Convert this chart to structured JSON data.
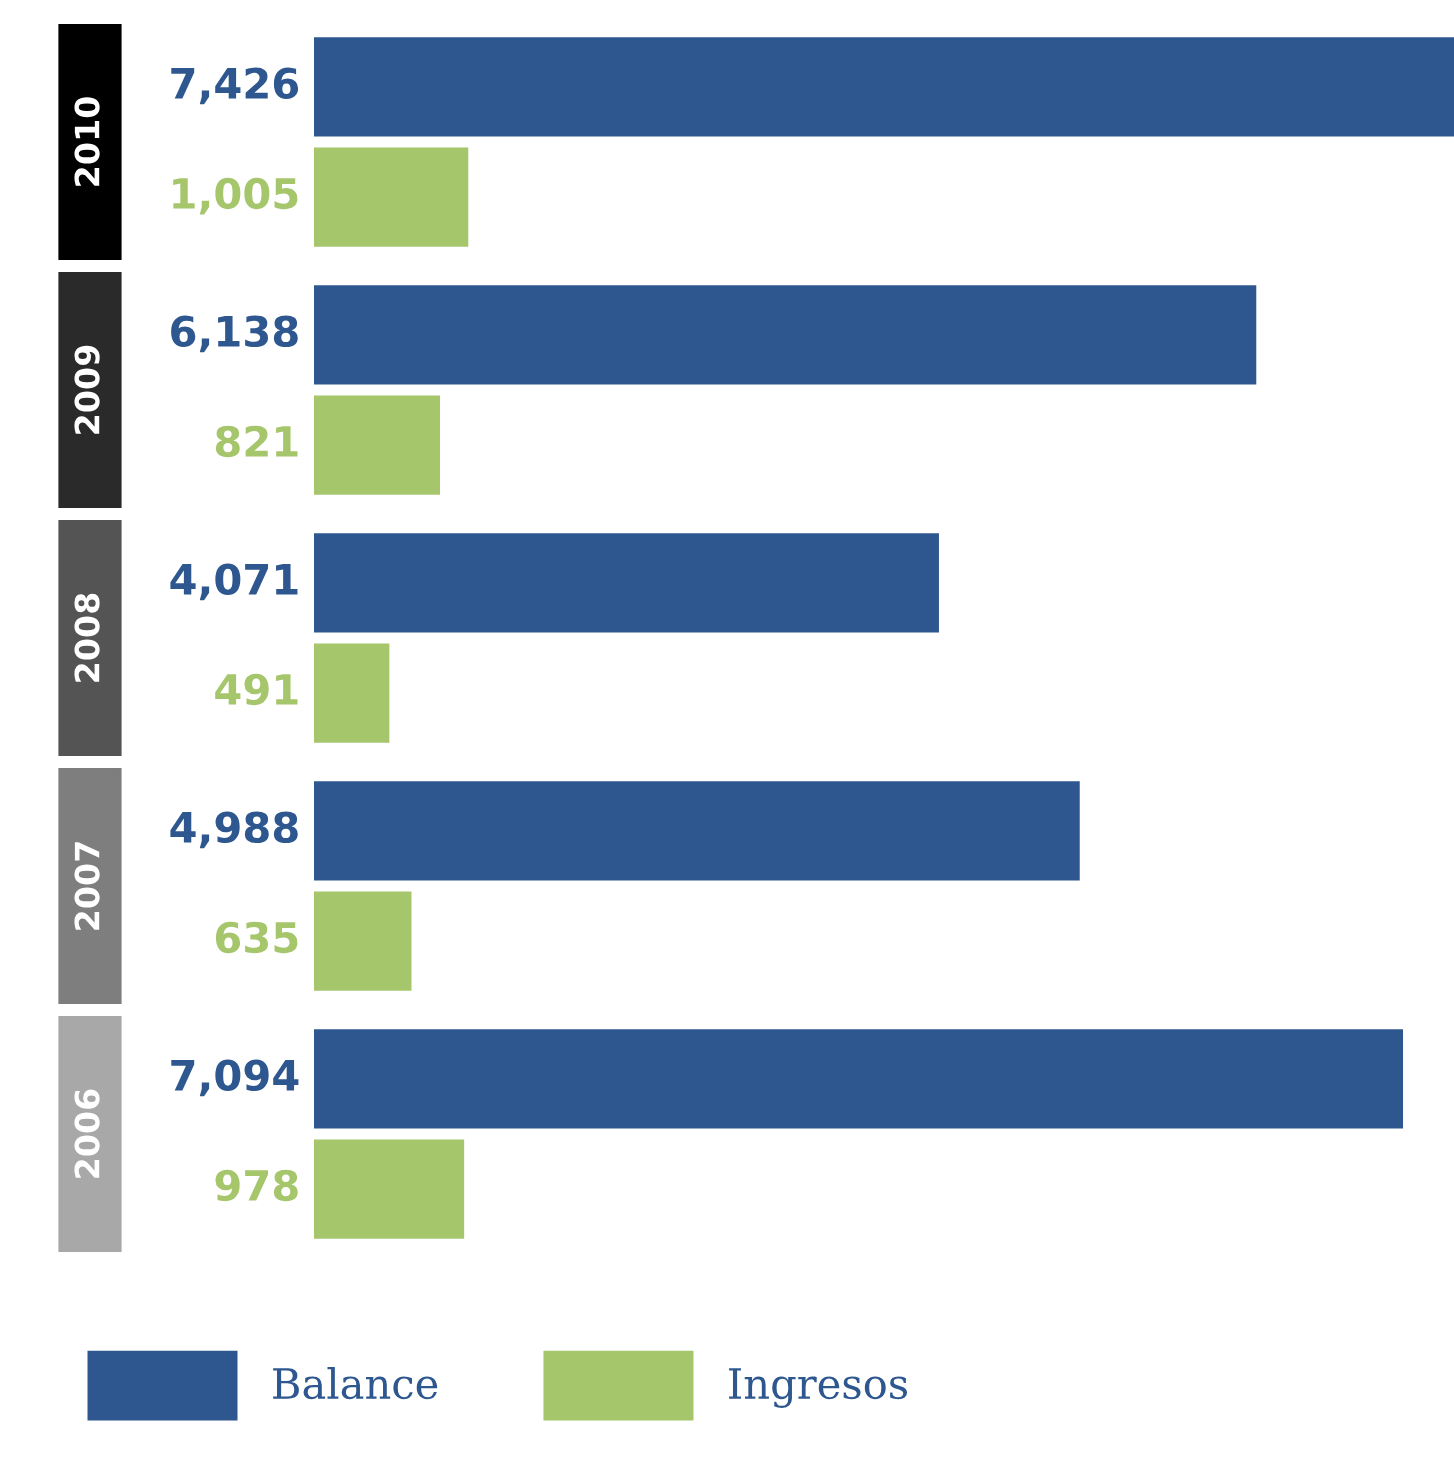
{
  "chart_data": {
    "type": "bar",
    "orientation": "horizontal",
    "categories": [
      "2010",
      "2009",
      "2008",
      "2007",
      "2006"
    ],
    "series": [
      {
        "name": "Balance",
        "color": "#2d578e",
        "values": [
          7426,
          6138,
          4071,
          4988,
          7094
        ],
        "value_labels": [
          "7,426",
          "6,138",
          "4,071",
          "4,988",
          "7,094"
        ]
      },
      {
        "name": "Ingresos",
        "color": "#a6c66c",
        "values": [
          1005,
          821,
          491,
          635,
          978
        ],
        "value_labels": [
          "1,005",
          "821",
          "491",
          "635",
          "978"
        ]
      }
    ],
    "legend": "bottom left"
  }
}
